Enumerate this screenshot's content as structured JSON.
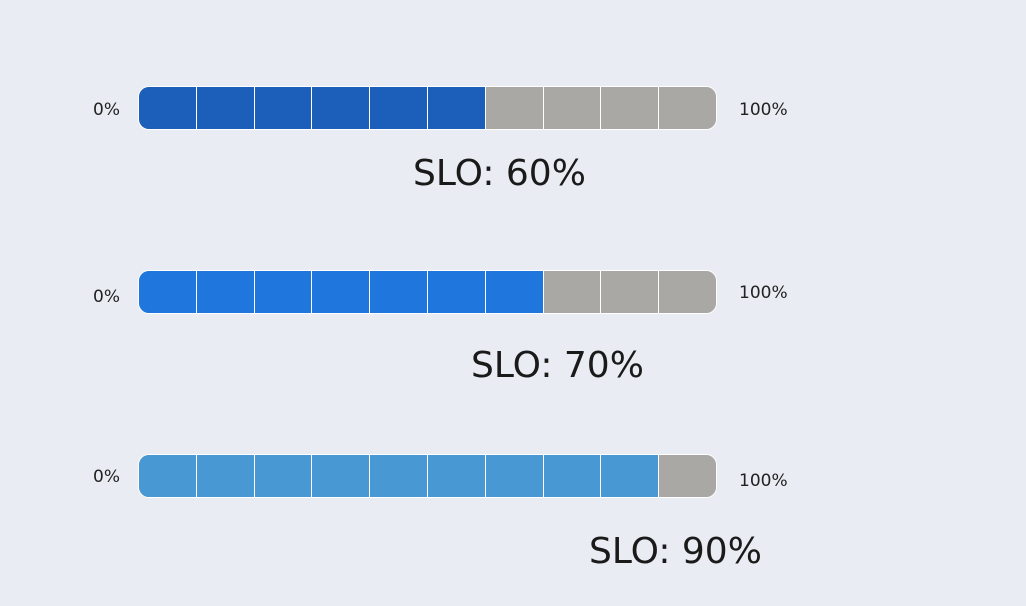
{
  "meters": [
    {
      "min_label": "0%",
      "max_label": "100%",
      "segments": 10,
      "filled": 6,
      "fill_fraction": 0.6,
      "fill_color": "#1c5fbb",
      "empty_color": "#aaa8a4",
      "slo_label": "SLO: 60%"
    },
    {
      "min_label": "0%",
      "max_label": "100%",
      "segments": 10,
      "filled": 7,
      "fill_fraction": 0.7,
      "fill_color": "#1f77de",
      "empty_color": "#aaa8a4",
      "slo_label": "SLO: 70%"
    },
    {
      "min_label": "0%",
      "max_label": "100%",
      "segments": 10,
      "filled": 9,
      "fill_fraction": 0.9,
      "fill_color": "#4898d3",
      "empty_color": "#aaa8a4",
      "slo_label": "SLO: 90%"
    }
  ]
}
